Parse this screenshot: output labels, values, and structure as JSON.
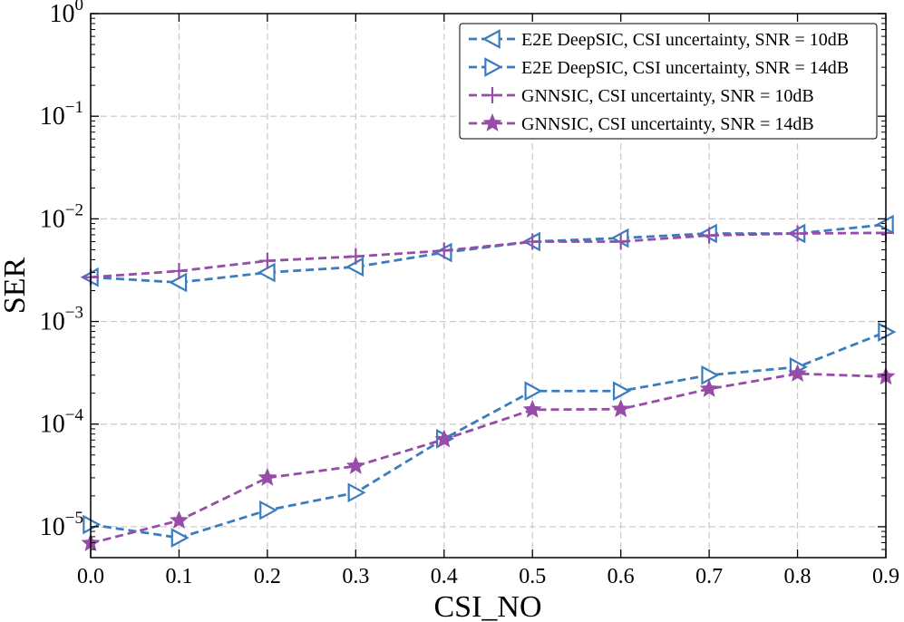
{
  "chart_data": {
    "type": "line",
    "title": "",
    "xlabel": "CSI_NO",
    "ylabel": "SER",
    "yscale": "log",
    "xlim": [
      0.0,
      0.9
    ],
    "ylim": [
      5e-06,
      1
    ],
    "grid": true,
    "legend_position": "top-right",
    "x": [
      0.0,
      0.1,
      0.2,
      0.3,
      0.4,
      0.5,
      0.6,
      0.7,
      0.8,
      0.9
    ],
    "x_tick_labels": [
      "0.0",
      "0.1",
      "0.2",
      "0.3",
      "0.4",
      "0.5",
      "0.6",
      "0.7",
      "0.8",
      "0.9"
    ],
    "y_ticks": [
      {
        "base": "10",
        "exp": "0",
        "value": 1
      },
      {
        "base": "10",
        "exp": "−1",
        "value": 0.1
      },
      {
        "base": "10",
        "exp": "−2",
        "value": 0.01
      },
      {
        "base": "10",
        "exp": "−3",
        "value": 0.001
      },
      {
        "base": "10",
        "exp": "−4",
        "value": 0.0001
      },
      {
        "base": "10",
        "exp": "−5",
        "value": 1e-05
      }
    ],
    "series": [
      {
        "name": "E2E DeepSIC, CSI uncertainty, SNR = 10dB",
        "color": "#3a7dbf",
        "marker": "triangle-left",
        "values": [
          0.0027,
          0.0024,
          0.003,
          0.0034,
          0.0047,
          0.006,
          0.0065,
          0.0072,
          0.0072,
          0.0088
        ]
      },
      {
        "name": "E2E DeepSIC, CSI uncertainty, SNR = 14dB",
        "color": "#3a7dbf",
        "marker": "triangle-right",
        "values": [
          1.05e-05,
          7.8e-06,
          1.45e-05,
          2.15e-05,
          7.2e-05,
          0.00021,
          0.00021,
          0.0003,
          0.00036,
          0.00079
        ]
      },
      {
        "name": "GNNSIC, CSI uncertainty, SNR = 10dB",
        "color": "#974ca8",
        "marker": "plus",
        "values": [
          0.0027,
          0.0031,
          0.0039,
          0.0043,
          0.0049,
          0.006,
          0.006,
          0.0069,
          0.0072,
          0.0073
        ]
      },
      {
        "name": "GNNSIC, CSI uncertainty, SNR = 14dB",
        "color": "#974ca8",
        "marker": "star",
        "values": [
          6.9e-06,
          1.15e-05,
          3e-05,
          3.9e-05,
          7.1e-05,
          0.000138,
          0.00014,
          0.00022,
          0.00031,
          0.00029
        ]
      }
    ]
  }
}
